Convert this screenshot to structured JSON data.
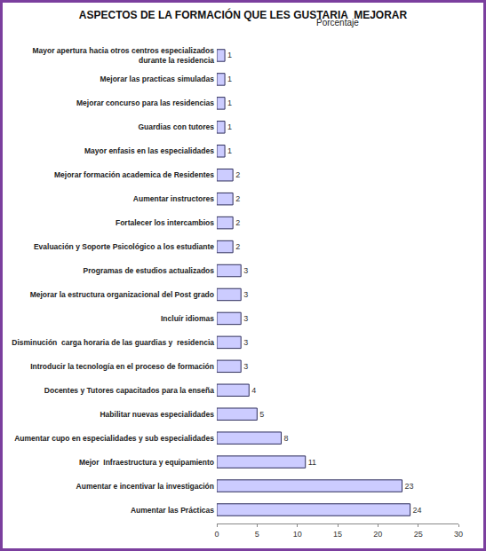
{
  "chart_data": {
    "type": "bar",
    "title": "ASPECTOS DE LA FORMACIÓN QUE LES GUSTARIA  MEJORAR",
    "subtitle": "Porcentaje",
    "orientation": "horizontal",
    "categories": [
      "Mayor apertura hacia otros centros especializados durante la residencia",
      "Mejorar las practicas simuladas",
      "Mejorar concurso para las residencias",
      "Guardias con tutores",
      "Mayor enfasis en las especialidades",
      "Mejorar formación academica de Residentes",
      "Aumentar instructores",
      "Fortalecer los intercambios",
      "Evaluación y Soporte Psicológico a los estudiante",
      "Programas de estudios actualizados",
      "Mejorar la estructura organizacional del Post grado",
      "Incluír idiomas",
      "Disminución  carga horaria de las guardias y  residencia",
      "Introducir la tecnología en el proceso de formación",
      "Docentes y Tutores capacitados para la enseña",
      "Habilitar nuevas especialidades",
      "Aumentar cupo en especialidades y sub especialidades",
      "Mejor  Infraestructura y equipamiento",
      "Aumentar e incentivar la investigación",
      "Aumentar las Prácticas"
    ],
    "values": [
      1,
      1,
      1,
      1,
      1,
      2,
      2,
      2,
      2,
      3,
      3,
      3,
      3,
      3,
      4,
      5,
      8,
      11,
      23,
      24
    ],
    "color": "#ccccff",
    "xlim": [
      0,
      30
    ],
    "xticks": [
      0,
      5,
      10,
      15,
      20,
      25,
      30
    ],
    "grid": false,
    "data_labels": true
  }
}
